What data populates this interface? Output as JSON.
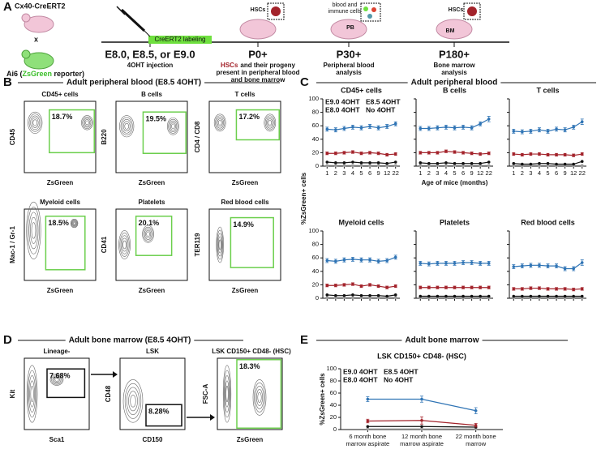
{
  "panel_a": {
    "label": "A",
    "mouse1": "Cx40-CreERT2",
    "cross": "x",
    "mouse2": [
      "Ai6 (",
      "ZsGreen",
      " reporter)"
    ],
    "labeling": "CreERT2 labeling",
    "steps": [
      {
        "title": "E8.0, E8.5, or E9.0",
        "lines": [
          "4OHT injection"
        ]
      },
      {
        "title": "P0+",
        "highlight": "HSCs",
        "rest": "and their progeny",
        "lines": [
          "present in peripheral blood",
          "and bone marrow"
        ]
      },
      {
        "title": "P30+",
        "lines": [
          "Peripheral blood",
          "analysis"
        ]
      },
      {
        "title": "P180+",
        "lines": [
          "Bone marrow",
          "analysis"
        ]
      }
    ],
    "icons": {
      "hsc1": "HSCs",
      "blood": [
        "blood and",
        "immune cells"
      ],
      "pb": "PB",
      "hsc2": "HSCs",
      "bm": "BM"
    }
  },
  "panel_b": {
    "label": "B",
    "title": "Adult peripheral blood (E8.5 4OHT)",
    "plots": [
      {
        "title": "CD45+ cells",
        "ylabel": "CD45",
        "xlabel": "ZsGreen",
        "gate": "18.7%"
      },
      {
        "title": "B cells",
        "ylabel": "B220",
        "xlabel": "ZsGreen",
        "gate": "19.5%"
      },
      {
        "title": "T cells",
        "ylabel": "CD4 / CD8",
        "xlabel": "ZsGreen",
        "gate": "17.2%"
      },
      {
        "title": "Myeloid cells",
        "ylabel": "Mac-1 / Gr-1",
        "xlabel": "ZsGreen",
        "gate": "18.5%"
      },
      {
        "title": "Platelets",
        "ylabel": "CD41",
        "xlabel": "ZsGreen",
        "gate": "20.1%"
      },
      {
        "title": "Red blood cells",
        "ylabel": "TER119",
        "xlabel": "ZsGreen",
        "gate": "14.9%"
      }
    ]
  },
  "panel_c": {
    "label": "C",
    "title": "Adult peripheral blood",
    "ylabel": "%ZsGreen+ cells"
  },
  "panel_d": {
    "label": "D",
    "title": "Adult bone marrow (E8.5 4OHT)",
    "plots": [
      {
        "title": "Lineage-",
        "ylabel": "Kit",
        "xlabel": "Sca1",
        "gate": "7.68%"
      },
      {
        "title": "LSK",
        "ylabel": "CD48",
        "xlabel": "CD150",
        "gate": "8.28%"
      },
      {
        "title": "LSK CD150+ CD48- (HSC)",
        "ylabel": "FSC-A",
        "xlabel": "ZsGreen",
        "gate": "18.3%"
      }
    ]
  },
  "panel_e": {
    "label": "E",
    "title": "Adult bone marrow"
  },
  "chart_data": [
    {
      "type": "line",
      "title": "CD45+ cells",
      "categories": [
        "1",
        "2",
        "3",
        "4",
        "5",
        "6",
        "9",
        "12",
        "22"
      ],
      "ylim": [
        0,
        100
      ],
      "yticks": [
        0,
        20,
        40,
        60,
        80,
        100
      ],
      "legend": "upper left",
      "series": [
        {
          "name": "E9.0 4OHT",
          "color": "#2f74b5",
          "values": [
            55,
            54,
            56,
            58,
            57,
            59,
            57,
            59,
            63
          ],
          "errors": [
            3,
            3,
            3,
            3,
            3,
            3,
            3,
            3,
            3
          ]
        },
        {
          "name": "E8.5 4OHT",
          "color": "#a3232b",
          "values": [
            19,
            19,
            20,
            21,
            19,
            20,
            19,
            17,
            18
          ],
          "errors": [
            2,
            2,
            2,
            2,
            2,
            2,
            2,
            2,
            2
          ]
        },
        {
          "name": "E8.0 4OHT",
          "color": "#111111",
          "values": [
            6,
            5,
            5,
            6,
            5,
            5,
            5,
            4,
            6
          ]
        },
        {
          "name": "No 4OHT",
          "color": "#999999",
          "values": [
            1,
            1,
            1,
            1,
            1,
            1,
            1,
            1,
            1
          ]
        }
      ]
    },
    {
      "type": "line",
      "title": "B cells",
      "categories": [
        "1",
        "2",
        "3",
        "4",
        "5",
        "6",
        "9",
        "12",
        "22"
      ],
      "xlabel": "Age of mice (months)",
      "ylim": [
        0,
        100
      ],
      "yticks": [
        0,
        20,
        40,
        60,
        80,
        100
      ],
      "ytick_labels": false,
      "series": [
        {
          "color": "#2f74b5",
          "values": [
            56,
            56,
            57,
            58,
            57,
            58,
            57,
            63,
            70
          ],
          "errors": [
            3,
            3,
            3,
            3,
            3,
            3,
            3,
            3,
            4
          ]
        },
        {
          "color": "#a3232b",
          "values": [
            20,
            20,
            20,
            22,
            21,
            20,
            19,
            18,
            19
          ],
          "errors": [
            2,
            2,
            2,
            2,
            2,
            2,
            2,
            2,
            2
          ]
        },
        {
          "color": "#111111",
          "values": [
            5,
            4,
            4,
            5,
            4,
            4,
            4,
            4,
            6
          ]
        },
        {
          "color": "#999999",
          "values": [
            1,
            1,
            1,
            1,
            1,
            1,
            1,
            1,
            1
          ]
        }
      ]
    },
    {
      "type": "line",
      "title": "T cells",
      "categories": [
        "1",
        "2",
        "3",
        "4",
        "5",
        "6",
        "9",
        "12",
        "22"
      ],
      "ylim": [
        0,
        100
      ],
      "yticks": [
        0,
        20,
        40,
        60,
        80,
        100
      ],
      "ytick_labels": false,
      "series": [
        {
          "color": "#2f74b5",
          "values": [
            52,
            51,
            52,
            54,
            52,
            55,
            54,
            58,
            66
          ],
          "errors": [
            3,
            3,
            3,
            3,
            3,
            3,
            3,
            3,
            4
          ]
        },
        {
          "color": "#a3232b",
          "values": [
            18,
            17,
            18,
            18,
            17,
            17,
            17,
            16,
            18
          ],
          "errors": [
            2,
            2,
            2,
            2,
            2,
            2,
            2,
            2,
            2
          ]
        },
        {
          "color": "#111111",
          "values": [
            4,
            3,
            3,
            4,
            4,
            3,
            3,
            3,
            7
          ]
        },
        {
          "color": "#999999",
          "values": [
            1,
            1,
            1,
            1,
            1,
            1,
            1,
            1,
            1
          ]
        }
      ]
    },
    {
      "type": "line",
      "title": "Myeloid cells",
      "categories": [
        null,
        null,
        null,
        null,
        null,
        null,
        null,
        null,
        null
      ],
      "ylim": [
        0,
        100
      ],
      "yticks": [
        0,
        20,
        40,
        60,
        80,
        100
      ],
      "series": [
        {
          "color": "#2f74b5",
          "values": [
            56,
            55,
            57,
            58,
            57,
            57,
            55,
            56,
            61
          ],
          "errors": [
            3,
            3,
            3,
            3,
            3,
            3,
            3,
            3,
            3
          ]
        },
        {
          "color": "#a3232b",
          "values": [
            19,
            19,
            20,
            21,
            18,
            20,
            18,
            16,
            18
          ],
          "errors": [
            2,
            2,
            2,
            2,
            2,
            2,
            2,
            2,
            2
          ]
        },
        {
          "color": "#111111",
          "values": [
            5,
            4,
            4,
            5,
            4,
            4,
            4,
            3,
            5
          ]
        },
        {
          "color": "#999999",
          "values": [
            1,
            1,
            1,
            1,
            1,
            1,
            1,
            1,
            1
          ]
        }
      ]
    },
    {
      "type": "line",
      "title": "Platelets",
      "categories": [
        null,
        null,
        null,
        null,
        null,
        null,
        null,
        null,
        null
      ],
      "ylim": [
        0,
        100
      ],
      "yticks": [
        0,
        20,
        40,
        60,
        80,
        100
      ],
      "ytick_labels": false,
      "series": [
        {
          "color": "#2f74b5",
          "values": [
            52,
            51,
            52,
            52,
            52,
            53,
            53,
            52,
            52
          ],
          "errors": [
            3,
            3,
            3,
            3,
            3,
            3,
            3,
            3,
            3
          ]
        },
        {
          "color": "#a3232b",
          "values": [
            16,
            16,
            16,
            16,
            16,
            16,
            16,
            16,
            16
          ],
          "errors": [
            2,
            2,
            2,
            2,
            2,
            2,
            2,
            2,
            2
          ]
        },
        {
          "color": "#111111",
          "values": [
            3,
            3,
            3,
            3,
            3,
            3,
            3,
            3,
            3
          ]
        },
        {
          "color": "#999999",
          "values": [
            1,
            1,
            1,
            1,
            1,
            1,
            1,
            1,
            1
          ]
        }
      ]
    },
    {
      "type": "line",
      "title": "Red blood cells",
      "categories": [
        null,
        null,
        null,
        null,
        null,
        null,
        null,
        null,
        null
      ],
      "ylim": [
        0,
        100
      ],
      "yticks": [
        0,
        20,
        40,
        60,
        80,
        100
      ],
      "ytick_labels": false,
      "series": [
        {
          "color": "#2f74b5",
          "values": [
            47,
            48,
            49,
            49,
            48,
            48,
            44,
            44,
            53
          ],
          "errors": [
            3,
            3,
            3,
            3,
            3,
            3,
            3,
            3,
            4
          ]
        },
        {
          "color": "#a3232b",
          "values": [
            14,
            14,
            15,
            15,
            14,
            14,
            14,
            13,
            14
          ],
          "errors": [
            2,
            2,
            2,
            2,
            2,
            2,
            2,
            2,
            2
          ]
        },
        {
          "color": "#111111",
          "values": [
            3,
            3,
            3,
            3,
            3,
            3,
            3,
            3,
            3
          ]
        },
        {
          "color": "#999999",
          "values": [
            1,
            1,
            1,
            1,
            1,
            1,
            1,
            1,
            1
          ]
        }
      ]
    },
    {
      "type": "line",
      "title": "LSK CD150+ CD48- (HSC)",
      "ylabel": "%ZsGreen+ cells",
      "categories": [
        "6 month bone marrow aspirate",
        "12 month bone marrow aspirate",
        "22 month bone marrow"
      ],
      "ylim": [
        0,
        100
      ],
      "yticks": [
        0,
        20,
        40,
        60,
        80,
        100
      ],
      "legend": "upper left",
      "series": [
        {
          "name": "E9.0 4OHT",
          "color": "#2f74b5",
          "values": [
            50,
            50,
            31
          ],
          "errors": [
            4,
            5,
            5
          ]
        },
        {
          "name": "E8.5 4OHT",
          "color": "#a3232b",
          "values": [
            14,
            15,
            7
          ],
          "errors": [
            3,
            6,
            3
          ]
        },
        {
          "name": "E8.0 4OHT",
          "color": "#111111",
          "values": [
            5,
            5,
            4
          ]
        },
        {
          "name": "No 4OHT",
          "color": "#999999",
          "values": [
            1,
            1,
            1
          ]
        }
      ]
    }
  ]
}
